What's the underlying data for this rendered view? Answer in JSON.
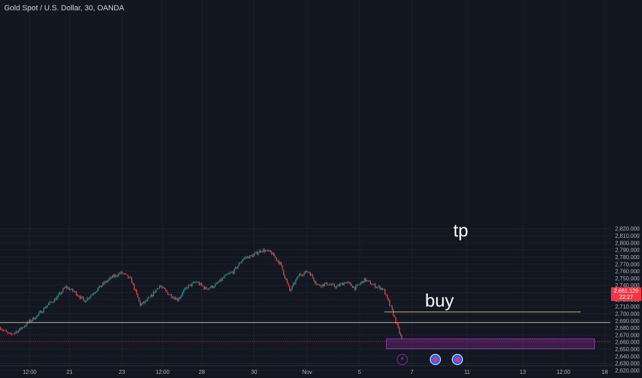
{
  "header": {
    "symbol_line": "Gold Spot / U.S. Dollar, 30, OANDA"
  },
  "annotations": {
    "tp_label": "tp",
    "buy_label": "buy"
  },
  "price_tag": {
    "price": "2,661.120",
    "countdown": "22:27"
  },
  "events": [
    {
      "name": "lightning-event-icon",
      "glyph": "⚡"
    },
    {
      "name": "us-flag-event-icon",
      "glyph": "●"
    },
    {
      "name": "us-flag-event-icon-2",
      "glyph": "●"
    }
  ],
  "colors": {
    "background": "#131722",
    "up": "#26a69a",
    "down": "#ef5350",
    "tp_line": "#d8c53a",
    "zone": "#9c27b0",
    "price_line": "#f23645",
    "text": "#d1d4dc"
  },
  "chart_data": {
    "type": "candlestick",
    "title": "Gold Spot / U.S. Dollar, 30, OANDA",
    "x_tick_labels": [
      "12:00",
      "21",
      "23",
      "12:00",
      "28",
      "30",
      "Nov",
      "5",
      "7",
      "11",
      "13",
      "12:00",
      "18"
    ],
    "y_ticks": [
      2620,
      2630,
      2640,
      2650,
      2660,
      2670,
      2680,
      2690,
      2700,
      2710,
      2720,
      2730,
      2740,
      2750,
      2760,
      2770,
      2780,
      2790,
      2800,
      2810,
      2820
    ],
    "y_tick_labels": [
      "2,620.000",
      "2,630.000",
      "2,640.000",
      "2,650.000",
      "2,660.000",
      "2,670.000",
      "2,680.000",
      "2,690.000",
      "2,700.000",
      "2,710.000",
      "2,720.000",
      "2,730.000",
      "2,740.000",
      "2,750.000",
      "2,760.000",
      "2,770.000",
      "2,780.000",
      "2,790.000",
      "2,800.000",
      "2,810.000",
      "2,820.000"
    ],
    "ylim": [
      2618,
      2823
    ],
    "last_price": 2661.12,
    "price_path": [
      2680,
      2670,
      2677,
      2688,
      2698,
      2712,
      2722,
      2738,
      2730,
      2718,
      2730,
      2742,
      2752,
      2758,
      2748,
      2712,
      2722,
      2740,
      2728,
      2720,
      2738,
      2745,
      2735,
      2740,
      2752,
      2760,
      2778,
      2782,
      2790,
      2786,
      2770,
      2732,
      2755,
      2760,
      2740,
      2742,
      2738,
      2745,
      2736,
      2748,
      2740,
      2735,
      2703,
      2663
    ],
    "levels": [
      {
        "label": "tp",
        "price": 2702.5
      },
      {
        "price": 2687.5
      }
    ],
    "zones": [
      {
        "label": "buy",
        "price_top": 2664.5,
        "price_bottom": 2650.5
      }
    ]
  }
}
